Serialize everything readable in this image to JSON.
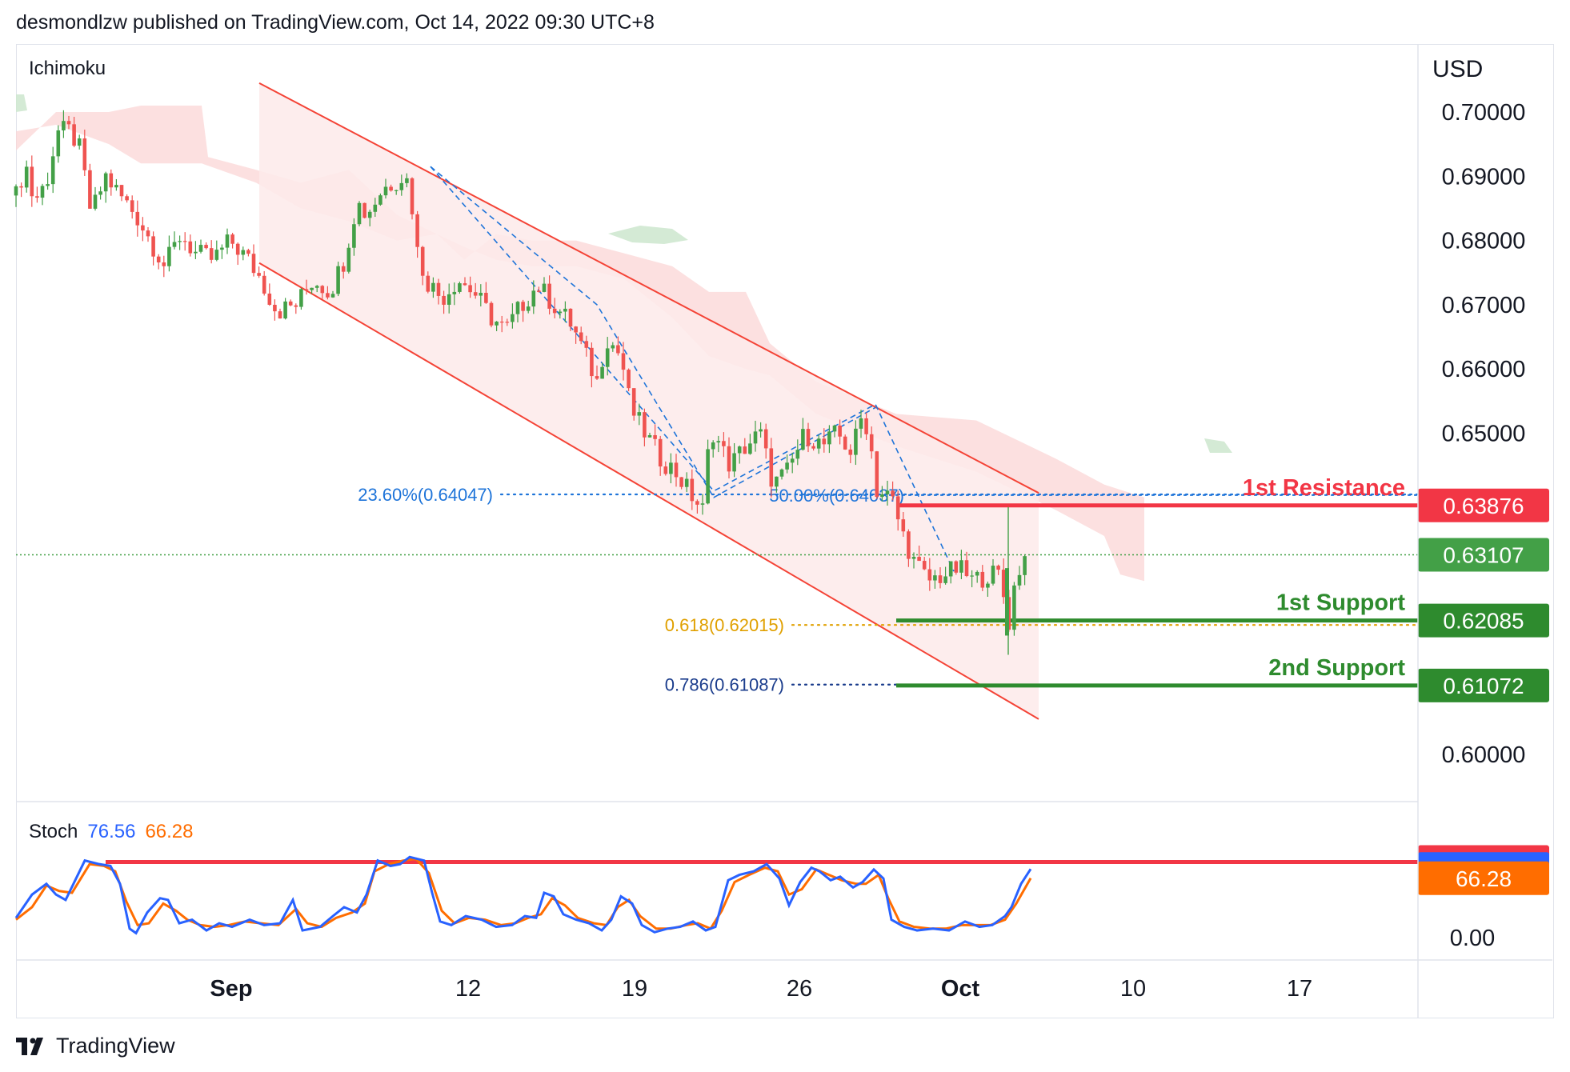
{
  "header": {
    "text": "desmondlzw published on TradingView.com, Oct 14, 2022 09:30 UTC+8"
  },
  "footer": {
    "brand": "TradingView"
  },
  "main_pane": {
    "indicator": "Ichimoku",
    "currency": "USD"
  },
  "stoch_pane": {
    "name": "Stoch",
    "k_value": "76.56",
    "d_value": "66.28"
  },
  "colors": {
    "bull": "#43a047",
    "bear": "#ef5350",
    "cloud_bear": "#fbd5d5",
    "cloud_bull": "#cfe8d0",
    "channel": "#f44336",
    "channel_fill": "#fdeaea",
    "fib_blue": "#1e74d9",
    "fib_orange": "#e0a000",
    "fib_navy": "#1a3c8c",
    "resistance": "#f23645",
    "support": "#2e8b2e",
    "stoch_k": "#2962ff",
    "stoch_d": "#ff6d00"
  },
  "chart_data": {
    "type": "candlestick",
    "y_axis": {
      "range": [
        0.593,
        0.712
      ],
      "ticks": [
        "0.70000",
        "0.69000",
        "0.68000",
        "0.67000",
        "0.66000",
        "0.65000",
        "0.60000"
      ]
    },
    "x_axis": {
      "ticks": [
        "Sep",
        "12",
        "19",
        "26",
        "Oct",
        "10",
        "17"
      ]
    },
    "price_path": [
      [
        0,
        0.687
      ],
      [
        12,
        0.692
      ],
      [
        22,
        0.686
      ],
      [
        38,
        0.689
      ],
      [
        52,
        0.697
      ],
      [
        68,
        0.697
      ],
      [
        80,
        0.694
      ],
      [
        94,
        0.684
      ],
      [
        112,
        0.69
      ],
      [
        130,
        0.687
      ],
      [
        150,
        0.684
      ],
      [
        168,
        0.68
      ],
      [
        186,
        0.676
      ],
      [
        206,
        0.681
      ],
      [
        224,
        0.678
      ],
      [
        246,
        0.677
      ],
      [
        268,
        0.68
      ],
      [
        290,
        0.677
      ],
      [
        306,
        0.674
      ],
      [
        326,
        0.669
      ],
      [
        350,
        0.67
      ],
      [
        372,
        0.674
      ],
      [
        392,
        0.672
      ],
      [
        410,
        0.677
      ],
      [
        426,
        0.686
      ],
      [
        438,
        0.684
      ],
      [
        458,
        0.688
      ],
      [
        470,
        0.689
      ],
      [
        482,
        0.69
      ],
      [
        492,
        0.689
      ],
      [
        500,
        0.679
      ],
      [
        512,
        0.674
      ],
      [
        532,
        0.671
      ],
      [
        552,
        0.674
      ],
      [
        572,
        0.672
      ],
      [
        594,
        0.668
      ],
      [
        612,
        0.666
      ],
      [
        632,
        0.67
      ],
      [
        652,
        0.673
      ],
      [
        672,
        0.67
      ],
      [
        694,
        0.667
      ],
      [
        712,
        0.662
      ],
      [
        726,
        0.658
      ],
      [
        738,
        0.665
      ],
      [
        756,
        0.662
      ],
      [
        768,
        0.654
      ],
      [
        786,
        0.65
      ],
      [
        806,
        0.646
      ],
      [
        824,
        0.644
      ],
      [
        846,
        0.64
      ],
      [
        858,
        0.638
      ],
      [
        868,
        0.651
      ],
      [
        892,
        0.645
      ],
      [
        912,
        0.648
      ],
      [
        930,
        0.65
      ],
      [
        946,
        0.642
      ],
      [
        964,
        0.644
      ],
      [
        986,
        0.65
      ],
      [
        1008,
        0.648
      ],
      [
        1026,
        0.65
      ],
      [
        1044,
        0.647
      ],
      [
        1058,
        0.653
      ],
      [
        1066,
        0.65
      ],
      [
        1076,
        0.641
      ],
      [
        1094,
        0.64
      ],
      [
        1106,
        0.635
      ],
      [
        1122,
        0.63
      ],
      [
        1140,
        0.627
      ],
      [
        1160,
        0.628
      ],
      [
        1178,
        0.629
      ],
      [
        1196,
        0.627
      ],
      [
        1214,
        0.628
      ],
      [
        1230,
        0.628
      ],
      [
        1240,
        0.62
      ],
      [
        1250,
        0.628
      ],
      [
        1262,
        0.631
      ]
    ],
    "cloud_top": [
      [
        0,
        0.694
      ],
      [
        50,
        0.7
      ],
      [
        116,
        0.7
      ],
      [
        156,
        0.701
      ],
      [
        232,
        0.701
      ],
      [
        240,
        0.693
      ],
      [
        300,
        0.691
      ],
      [
        356,
        0.689
      ],
      [
        416,
        0.691
      ],
      [
        476,
        0.684
      ],
      [
        526,
        0.681
      ],
      [
        560,
        0.677
      ],
      [
        600,
        0.681
      ],
      [
        644,
        0.68
      ],
      [
        700,
        0.68
      ],
      [
        760,
        0.678
      ],
      [
        820,
        0.676
      ],
      [
        866,
        0.672
      ],
      [
        912,
        0.672
      ],
      [
        942,
        0.664
      ],
      [
        1000,
        0.658
      ],
      [
        1100,
        0.653
      ],
      [
        1200,
        0.652
      ],
      [
        1300,
        0.646
      ],
      [
        1360,
        0.642
      ],
      [
        1410,
        0.64
      ]
    ],
    "cloud_bottom": [
      [
        0,
        0.697
      ],
      [
        50,
        0.698
      ],
      [
        116,
        0.695
      ],
      [
        156,
        0.692
      ],
      [
        232,
        0.692
      ],
      [
        300,
        0.689
      ],
      [
        356,
        0.685
      ],
      [
        416,
        0.683
      ],
      [
        476,
        0.68
      ],
      [
        526,
        0.681
      ],
      [
        560,
        0.679
      ],
      [
        600,
        0.677
      ],
      [
        644,
        0.676
      ],
      [
        700,
        0.676
      ],
      [
        760,
        0.674
      ],
      [
        820,
        0.668
      ],
      [
        866,
        0.662
      ],
      [
        912,
        0.66
      ],
      [
        942,
        0.659
      ],
      [
        1000,
        0.653
      ],
      [
        1100,
        0.648
      ],
      [
        1200,
        0.644
      ],
      [
        1300,
        0.638
      ],
      [
        1360,
        0.634
      ],
      [
        1380,
        0.628
      ],
      [
        1410,
        0.627
      ]
    ],
    "channel_upper": [
      [
        304,
        0.7045
      ],
      [
        1278,
        0.6407
      ]
    ],
    "channel_lower": [
      [
        304,
        0.6765
      ],
      [
        1278,
        0.6055
      ]
    ],
    "zigzag_a": [
      [
        518,
        0.6915
      ],
      [
        872,
        0.641
      ],
      [
        1074,
        0.6545
      ],
      [
        1172,
        0.6285
      ]
    ],
    "zigzag_b": [
      [
        518,
        0.6915
      ],
      [
        726,
        0.67
      ],
      [
        872,
        0.64
      ],
      [
        1074,
        0.654
      ]
    ],
    "fib_levels": [
      {
        "label": "23.60%(0.64047)",
        "value": 0.64047,
        "x_start": 516,
        "x_end": 1412,
        "color": "#1e74d9"
      },
      {
        "label": "50.00%(0.64037)",
        "value": 0.64037,
        "x_start": 890,
        "x_end": 1412,
        "color": "#1e74d9",
        "label_inline": true
      },
      {
        "label": "0.618(0.62015)",
        "value": 0.62015,
        "x_start": 880,
        "x_end": 1412,
        "color": "#e0a000"
      },
      {
        "label": "0.786(0.61087)",
        "value": 0.61087,
        "x_start": 880,
        "x_end": 1412,
        "color": "#1a3c8c"
      }
    ],
    "levels": [
      {
        "name": "1st Resistance",
        "value": 0.63876,
        "display": "0.63876",
        "color": "#f23645"
      },
      {
        "name": "1st Support",
        "value": 0.62085,
        "display": "0.62085",
        "color": "#2e8b2e"
      },
      {
        "name": "2nd Support",
        "value": 0.61072,
        "display": "0.61072",
        "color": "#2e8b2e"
      }
    ],
    "last_price": {
      "value": 0.63107,
      "display": "0.63107"
    },
    "stochastic": {
      "range": [
        0,
        100
      ],
      "ticks": [
        "0.00"
      ],
      "overbought_marker": {
        "value": 84.32,
        "display": "84.32"
      },
      "k_last": {
        "value": 76.56,
        "display": "76.56"
      },
      "d_last": {
        "value": 66.28,
        "display": "66.28"
      },
      "k_series": [
        [
          0,
          22
        ],
        [
          20,
          48
        ],
        [
          38,
          60
        ],
        [
          50,
          48
        ],
        [
          62,
          42
        ],
        [
          86,
          86
        ],
        [
          104,
          82
        ],
        [
          118,
          80
        ],
        [
          130,
          60
        ],
        [
          142,
          10
        ],
        [
          150,
          5
        ],
        [
          164,
          28
        ],
        [
          180,
          44
        ],
        [
          190,
          42
        ],
        [
          204,
          16
        ],
        [
          220,
          20
        ],
        [
          238,
          8
        ],
        [
          254,
          16
        ],
        [
          270,
          12
        ],
        [
          292,
          20
        ],
        [
          310,
          14
        ],
        [
          330,
          16
        ],
        [
          346,
          42
        ],
        [
          358,
          8
        ],
        [
          380,
          12
        ],
        [
          396,
          24
        ],
        [
          410,
          34
        ],
        [
          426,
          28
        ],
        [
          438,
          48
        ],
        [
          452,
          86
        ],
        [
          468,
          80
        ],
        [
          480,
          82
        ],
        [
          492,
          90
        ],
        [
          510,
          86
        ],
        [
          520,
          50
        ],
        [
          530,
          18
        ],
        [
          544,
          14
        ],
        [
          562,
          24
        ],
        [
          582,
          20
        ],
        [
          600,
          12
        ],
        [
          620,
          14
        ],
        [
          636,
          24
        ],
        [
          650,
          22
        ],
        [
          660,
          50
        ],
        [
          672,
          46
        ],
        [
          684,
          26
        ],
        [
          700,
          20
        ],
        [
          716,
          16
        ],
        [
          732,
          8
        ],
        [
          744,
          20
        ],
        [
          756,
          46
        ],
        [
          770,
          38
        ],
        [
          782,
          14
        ],
        [
          798,
          6
        ],
        [
          814,
          10
        ],
        [
          830,
          12
        ],
        [
          846,
          18
        ],
        [
          862,
          8
        ],
        [
          874,
          12
        ],
        [
          890,
          64
        ],
        [
          904,
          70
        ],
        [
          922,
          74
        ],
        [
          938,
          82
        ],
        [
          954,
          66
        ],
        [
          966,
          36
        ],
        [
          980,
          62
        ],
        [
          994,
          78
        ],
        [
          1004,
          74
        ],
        [
          1018,
          64
        ],
        [
          1030,
          68
        ],
        [
          1046,
          56
        ],
        [
          1058,
          62
        ],
        [
          1072,
          76
        ],
        [
          1084,
          66
        ],
        [
          1094,
          20
        ],
        [
          1110,
          12
        ],
        [
          1126,
          8
        ],
        [
          1146,
          10
        ],
        [
          1166,
          8
        ],
        [
          1186,
          18
        ],
        [
          1204,
          12
        ],
        [
          1220,
          14
        ],
        [
          1236,
          24
        ],
        [
          1244,
          34
        ],
        [
          1256,
          60
        ],
        [
          1268,
          76.56
        ]
      ],
      "d_series": [
        [
          0,
          20
        ],
        [
          20,
          34
        ],
        [
          38,
          58
        ],
        [
          54,
          52
        ],
        [
          70,
          50
        ],
        [
          92,
          82
        ],
        [
          110,
          80
        ],
        [
          124,
          74
        ],
        [
          138,
          40
        ],
        [
          152,
          14
        ],
        [
          166,
          16
        ],
        [
          184,
          38
        ],
        [
          200,
          30
        ],
        [
          214,
          20
        ],
        [
          230,
          14
        ],
        [
          248,
          12
        ],
        [
          266,
          14
        ],
        [
          286,
          18
        ],
        [
          306,
          16
        ],
        [
          328,
          14
        ],
        [
          350,
          32
        ],
        [
          364,
          16
        ],
        [
          382,
          12
        ],
        [
          400,
          22
        ],
        [
          420,
          28
        ],
        [
          436,
          38
        ],
        [
          448,
          74
        ],
        [
          466,
          82
        ],
        [
          484,
          86
        ],
        [
          500,
          88
        ],
        [
          516,
          72
        ],
        [
          532,
          30
        ],
        [
          548,
          16
        ],
        [
          566,
          22
        ],
        [
          586,
          20
        ],
        [
          606,
          14
        ],
        [
          624,
          16
        ],
        [
          640,
          22
        ],
        [
          656,
          26
        ],
        [
          670,
          44
        ],
        [
          686,
          36
        ],
        [
          702,
          22
        ],
        [
          722,
          16
        ],
        [
          738,
          14
        ],
        [
          752,
          34
        ],
        [
          766,
          42
        ],
        [
          780,
          24
        ],
        [
          800,
          10
        ],
        [
          818,
          10
        ],
        [
          838,
          14
        ],
        [
          852,
          16
        ],
        [
          868,
          10
        ],
        [
          882,
          30
        ],
        [
          898,
          62
        ],
        [
          916,
          70
        ],
        [
          936,
          78
        ],
        [
          952,
          74
        ],
        [
          966,
          48
        ],
        [
          982,
          54
        ],
        [
          1000,
          76
        ],
        [
          1016,
          70
        ],
        [
          1032,
          64
        ],
        [
          1050,
          60
        ],
        [
          1062,
          60
        ],
        [
          1078,
          70
        ],
        [
          1090,
          44
        ],
        [
          1104,
          18
        ],
        [
          1122,
          12
        ],
        [
          1142,
          10
        ],
        [
          1162,
          10
        ],
        [
          1182,
          14
        ],
        [
          1200,
          14
        ],
        [
          1218,
          14
        ],
        [
          1236,
          20
        ],
        [
          1250,
          38
        ],
        [
          1268,
          66.28
        ]
      ]
    }
  }
}
